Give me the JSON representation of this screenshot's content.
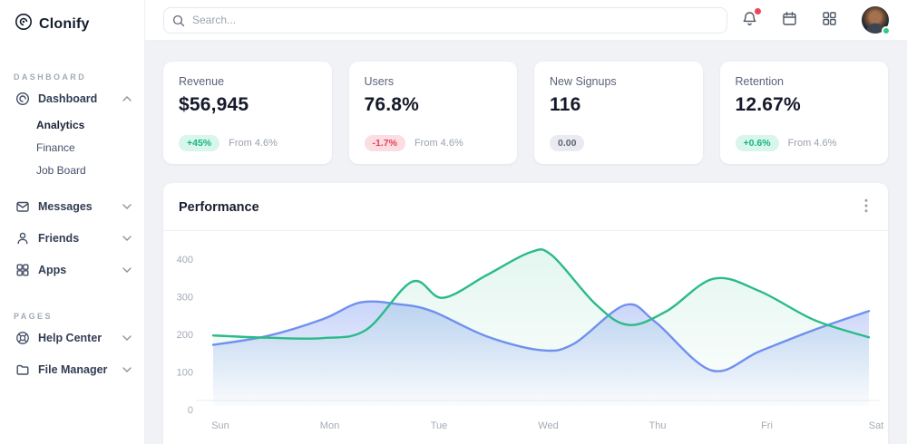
{
  "brand": {
    "name": "Clonify"
  },
  "topbar": {
    "search": {
      "placeholder": "Search..."
    },
    "notification_dot_color": "#f0435a",
    "status_dot_color": "#2ecc81"
  },
  "sidebar": {
    "sections": [
      {
        "label": "DASHBOARD",
        "items": [
          {
            "label": "Dashboard",
            "icon": "dashboard-icon",
            "expanded": true,
            "children": [
              "Analytics",
              "Finance",
              "Job Board"
            ],
            "active_child": "Analytics"
          },
          {
            "label": "Messages",
            "icon": "mail-icon"
          },
          {
            "label": "Friends",
            "icon": "user-icon"
          },
          {
            "label": "Apps",
            "icon": "grid-icon"
          }
        ]
      },
      {
        "label": "PAGES",
        "items": [
          {
            "label": "Help Center",
            "icon": "lifebuoy-icon"
          },
          {
            "label": "File Manager",
            "icon": "folder-icon"
          }
        ]
      }
    ]
  },
  "stats": [
    {
      "label": "Revenue",
      "value": "$56,945",
      "badge": "+45%",
      "badge_type": "positive",
      "note": "From 4.6%"
    },
    {
      "label": "Users",
      "value": "76.8%",
      "badge": "-1.7%",
      "badge_type": "negative",
      "note": "From 4.6%"
    },
    {
      "label": "New Signups",
      "value": "116",
      "badge": "0.00",
      "badge_type": "neutral",
      "note": ""
    },
    {
      "label": "Retention",
      "value": "12.67%",
      "badge": "+0.6%",
      "badge_type": "positive",
      "note": "From 4.6%"
    }
  ],
  "performance": {
    "title": "Performance"
  },
  "chart_data": {
    "type": "area",
    "title": "Performance",
    "x_labels": [
      "Sun",
      "Mon",
      "Tue",
      "Wed",
      "Thu",
      "Fri",
      "Sat"
    ],
    "y_ticks": [
      0,
      100,
      200,
      300,
      400
    ],
    "ylim": [
      0,
      440
    ],
    "grid": false,
    "legend": "none",
    "series": [
      {
        "name": "blue",
        "color": "#7090f0",
        "points": [
          [
            0,
            172
          ],
          [
            0.5,
            196
          ],
          [
            1,
            240
          ],
          [
            1.35,
            285
          ],
          [
            1.7,
            280
          ],
          [
            2,
            262
          ],
          [
            2.5,
            195
          ],
          [
            3,
            158
          ],
          [
            3.3,
            175
          ],
          [
            3.77,
            278
          ],
          [
            4.05,
            232
          ],
          [
            4.56,
            104
          ],
          [
            5,
            155
          ],
          [
            5.5,
            212
          ],
          [
            6,
            262
          ]
        ]
      },
      {
        "name": "green",
        "color": "#2abb87",
        "points": [
          [
            0,
            197
          ],
          [
            0.5,
            191
          ],
          [
            1,
            190
          ],
          [
            1.4,
            212
          ],
          [
            1.82,
            340
          ],
          [
            2.1,
            297
          ],
          [
            2.5,
            357
          ],
          [
            2.9,
            418
          ],
          [
            3.1,
            410
          ],
          [
            3.5,
            280
          ],
          [
            3.8,
            225
          ],
          [
            4.15,
            262
          ],
          [
            4.58,
            348
          ],
          [
            5,
            315
          ],
          [
            5.5,
            238
          ],
          [
            6,
            192
          ]
        ]
      }
    ]
  },
  "colors": {
    "accent_green": "#2abb87",
    "accent_blue": "#7090f0",
    "badge_positive": "#12b683",
    "badge_negative": "#e83f57",
    "text_dark": "#15192a",
    "text_muted": "#99a1ad",
    "bg_main": "#f0f2f6"
  }
}
